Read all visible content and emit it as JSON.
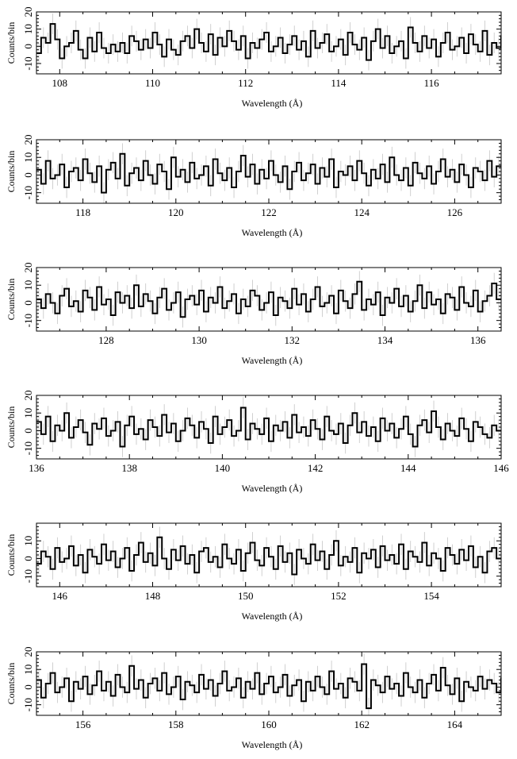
{
  "figure": {
    "xlabel": "Wavelength (Å)",
    "ylabel": "Counts/bin"
  },
  "chart_data": [
    {
      "type": "line",
      "style": "step with gray error bars",
      "xlabel": "Wavelength (Å)",
      "ylabel": "Counts/bin",
      "xlim": [
        107.5,
        117.5
      ],
      "ylim": [
        -16,
        20
      ],
      "xticks": [
        108,
        110,
        112,
        114,
        116
      ],
      "yticks": [
        -10,
        0,
        10,
        20
      ],
      "bin_width": 0.1,
      "series": [
        {
          "values": [
            -4,
            5,
            2,
            13,
            4,
            -7,
            0,
            2,
            9,
            -2,
            -7,
            5,
            -3,
            8,
            -1,
            -4,
            1,
            -3,
            2,
            -4,
            6,
            3,
            -2,
            4,
            -1,
            8,
            1,
            -6,
            4,
            -2,
            -5,
            3,
            6,
            -1,
            10,
            2,
            -3,
            7,
            -5,
            5,
            0,
            9,
            3,
            -2,
            6,
            -7,
            2,
            -1,
            4,
            8,
            -3,
            0,
            5,
            -4,
            1,
            6,
            -2,
            3,
            -6,
            9,
            -1,
            2,
            7,
            -3,
            0,
            4,
            -5,
            8,
            1,
            -2,
            5,
            -8,
            3,
            10,
            -1,
            6,
            -4,
            0,
            3,
            -7,
            11,
            2,
            -3,
            6,
            -1,
            4,
            -6,
            2,
            8,
            -2,
            0,
            5,
            -4,
            7,
            1,
            -3,
            9,
            -5,
            2,
            -1,
            6
          ]
        }
      ],
      "errors": 6
    },
    {
      "type": "line",
      "style": "step with gray error bars",
      "xlabel": "Wavelength (Å)",
      "ylabel": "Counts/bin",
      "xlim": [
        117,
        127
      ],
      "ylim": [
        -16,
        20
      ],
      "xticks": [
        118,
        120,
        122,
        124,
        126
      ],
      "yticks": [
        -10,
        0,
        10,
        20
      ],
      "bin_width": 0.1,
      "series": [
        {
          "values": [
            3,
            -5,
            8,
            -2,
            0,
            6,
            -7,
            2,
            4,
            -3,
            9,
            1,
            -4,
            5,
            -10,
            3,
            7,
            -2,
            12,
            -6,
            1,
            4,
            -3,
            8,
            0,
            -5,
            6,
            2,
            -8,
            10,
            -1,
            3,
            -4,
            7,
            -2,
            0,
            5,
            -6,
            9,
            1,
            -3,
            4,
            -7,
            2,
            11,
            -1,
            6,
            -5,
            3,
            -2,
            8,
            0,
            -4,
            5,
            -8,
            2,
            7,
            -3,
            1,
            6,
            -5,
            4,
            -1,
            9,
            -7,
            2,
            0,
            5,
            -3,
            8,
            1,
            -6,
            3,
            -2,
            6,
            -4,
            10,
            0,
            -3,
            4,
            -6,
            7,
            1,
            -2,
            5,
            -5,
            2,
            9,
            -1,
            3,
            -4,
            6,
            0,
            -7,
            4,
            2,
            -3,
            8,
            -1,
            5
          ]
        }
      ],
      "errors": 6
    },
    {
      "type": "line",
      "style": "step with gray error bars",
      "xlabel": "Wavelength (Å)",
      "ylabel": "Counts/bin",
      "xlim": [
        126.5,
        136.5
      ],
      "ylim": [
        -16,
        20
      ],
      "xticks": [
        128,
        130,
        132,
        134,
        136
      ],
      "yticks": [
        -10,
        0,
        10,
        20
      ],
      "bin_width": 0.1,
      "series": [
        {
          "values": [
            2,
            -3,
            5,
            0,
            -6,
            4,
            8,
            -2,
            1,
            -5,
            7,
            3,
            -4,
            9,
            -1,
            2,
            -7,
            6,
            0,
            4,
            -3,
            10,
            -2,
            5,
            1,
            -6,
            3,
            8,
            -4,
            0,
            6,
            -8,
            2,
            4,
            -1,
            7,
            -5,
            3,
            0,
            9,
            -3,
            1,
            5,
            -6,
            2,
            -2,
            7,
            4,
            -4,
            0,
            6,
            -7,
            3,
            1,
            -3,
            8,
            -1,
            5,
            -5,
            2,
            9,
            -2,
            0,
            4,
            -6,
            7,
            1,
            -3,
            5,
            12,
            -4,
            2,
            -1,
            6,
            -7,
            3,
            0,
            8,
            -2,
            4,
            -5,
            1,
            10,
            -3,
            6,
            -1,
            2,
            -6,
            5,
            3,
            -4,
            9,
            0,
            -2,
            7,
            -5,
            1,
            4,
            11,
            2
          ]
        }
      ],
      "errors": 6
    },
    {
      "type": "line",
      "style": "step with gray error bars",
      "xlabel": "Wavelength (Å)",
      "ylabel": "Counts/bin",
      "xlim": [
        136,
        146
      ],
      "ylim": [
        -16,
        20
      ],
      "xticks": [
        136,
        138,
        140,
        142,
        144,
        146
      ],
      "yticks": [
        -10,
        0,
        10,
        20
      ],
      "bin_width": 0.1,
      "series": [
        {
          "values": [
            5,
            -2,
            8,
            -6,
            3,
            0,
            10,
            -4,
            2,
            6,
            -1,
            -8,
            4,
            1,
            7,
            -3,
            0,
            5,
            -9,
            3,
            8,
            -2,
            1,
            -5,
            6,
            2,
            -3,
            9,
            -1,
            4,
            -6,
            0,
            7,
            3,
            -4,
            5,
            1,
            -7,
            8,
            -2,
            2,
            6,
            -3,
            0,
            13,
            -5,
            4,
            1,
            -2,
            7,
            -6,
            3,
            0,
            5,
            -4,
            9,
            -1,
            2,
            -3,
            6,
            1,
            -5,
            8,
            0,
            -2,
            4,
            -7,
            3,
            10,
            -1,
            5,
            -3,
            2,
            -6,
            7,
            0,
            4,
            -4,
            1,
            8,
            -2,
            -9,
            3,
            6,
            -1,
            11,
            2,
            -5,
            4,
            0,
            -3,
            7,
            1,
            -6,
            5,
            2,
            -2,
            -4,
            3,
            0
          ]
        }
      ],
      "errors": 6
    },
    {
      "type": "line",
      "style": "step with gray error bars",
      "xlabel": "Wavelength (Å)",
      "ylabel": "Counts/bin",
      "xlim": [
        145.5,
        155.5
      ],
      "ylim": [
        -16,
        20
      ],
      "xticks": [
        146,
        148,
        150,
        152,
        154
      ],
      "yticks": [
        -10,
        0,
        10
      ],
      "bin_width": 0.1,
      "series": [
        {
          "values": [
            -3,
            4,
            1,
            -6,
            6,
            -2,
            0,
            7,
            -4,
            2,
            -8,
            5,
            1,
            -3,
            8,
            -1,
            4,
            -5,
            0,
            6,
            -7,
            2,
            9,
            -2,
            3,
            -4,
            12,
            0,
            -6,
            5,
            -1,
            7,
            -3,
            2,
            -8,
            4,
            6,
            -2,
            1,
            -5,
            8,
            0,
            -3,
            5,
            -7,
            3,
            9,
            -1,
            -4,
            6,
            1,
            -6,
            7,
            -2,
            3,
            -9,
            5,
            0,
            -3,
            8,
            -1,
            4,
            -6,
            2,
            10,
            -4,
            1,
            -2,
            6,
            -8,
            3,
            0,
            5,
            -5,
            7,
            -1,
            2,
            -3,
            8,
            -6,
            4,
            1,
            -2,
            9,
            -4,
            3,
            0,
            -7,
            6,
            2,
            -3,
            5,
            -1,
            7,
            -5,
            1,
            -8,
            4,
            6,
            0
          ]
        }
      ],
      "errors": 6
    },
    {
      "type": "line",
      "style": "step with gray error bars",
      "xlabel": "Wavelength (Å)",
      "ylabel": "Counts/bin",
      "xlim": [
        155,
        165
      ],
      "ylim": [
        -16,
        20
      ],
      "xticks": [
        156,
        158,
        160,
        162,
        164
      ],
      "yticks": [
        -10,
        0,
        10,
        20
      ],
      "bin_width": 0.1,
      "series": [
        {
          "values": [
            4,
            -6,
            2,
            8,
            -3,
            0,
            5,
            -8,
            3,
            -1,
            6,
            -4,
            1,
            9,
            -2,
            3,
            -5,
            7,
            0,
            -3,
            12,
            -1,
            4,
            -6,
            2,
            5,
            -2,
            8,
            -4,
            0,
            6,
            -7,
            3,
            1,
            -3,
            7,
            -1,
            4,
            -5,
            2,
            9,
            -2,
            0,
            5,
            -6,
            3,
            -1,
            8,
            -4,
            2,
            6,
            -3,
            0,
            7,
            -5,
            1,
            4,
            -8,
            3,
            -2,
            6,
            0,
            -4,
            9,
            -1,
            2,
            -6,
            5,
            3,
            -2,
            13,
            -12,
            4,
            1,
            -3,
            6,
            -1,
            2,
            -5,
            8,
            0,
            -3,
            4,
            -6,
            2,
            7,
            -2,
            11,
            1,
            -4,
            5,
            -8,
            3,
            0,
            -2,
            6,
            -1,
            4,
            2,
            -3,
            5,
            -1
          ]
        }
      ],
      "errors": 6
    }
  ]
}
